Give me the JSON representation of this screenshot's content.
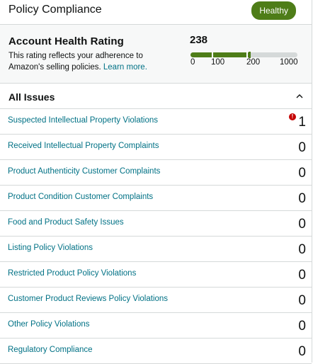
{
  "header": {
    "title": "Policy Compliance",
    "status_badge": "Healthy"
  },
  "account_health": {
    "title": "Account Health Rating",
    "description": "This rating reflects your adherence to Amazon's selling policies.",
    "learn_more": "Learn more.",
    "score": "238",
    "score_value": 238,
    "scale_ticks": [
      "0",
      "100",
      "200",
      "1000"
    ],
    "bar_color": "#4e7d18"
  },
  "issues": {
    "title": "All Issues",
    "items": [
      {
        "label": "Suspected Intellectual Property Violations",
        "count": "1",
        "alert": true
      },
      {
        "label": "Received Intellectual Property Complaints",
        "count": "0"
      },
      {
        "label": "Product Authenticity Customer Complaints",
        "count": "0"
      },
      {
        "label": "Product Condition Customer Complaints",
        "count": "0"
      },
      {
        "label": "Food and Product Safety Issues",
        "count": "0"
      },
      {
        "label": "Listing Policy Violations",
        "count": "0"
      },
      {
        "label": "Restricted Product Policy Violations",
        "count": "0"
      },
      {
        "label": "Customer Product Reviews Policy Violations",
        "count": "0"
      },
      {
        "label": "Other Policy Violations",
        "count": "0"
      },
      {
        "label": "Regulatory Compliance",
        "count": "0"
      }
    ]
  }
}
